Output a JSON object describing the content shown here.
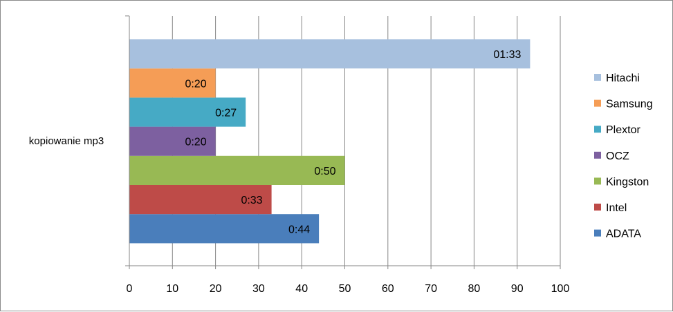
{
  "chart_data": {
    "type": "bar",
    "orientation": "horizontal",
    "categories": [
      "kopiowanie mp3"
    ],
    "series": [
      {
        "name": "ADATA",
        "values": [
          44
        ],
        "label": "0:44",
        "color": "#4a7ebb"
      },
      {
        "name": "Intel",
        "values": [
          33
        ],
        "label": "0:33",
        "color": "#be4b48"
      },
      {
        "name": "Kingston",
        "values": [
          50
        ],
        "label": "0:50",
        "color": "#98b954"
      },
      {
        "name": "OCZ",
        "values": [
          20
        ],
        "label": "0:20",
        "color": "#7d60a0"
      },
      {
        "name": "Plextor",
        "values": [
          27
        ],
        "label": "0:27",
        "color": "#46aac5"
      },
      {
        "name": "Samsung",
        "values": [
          20
        ],
        "label": "0:20",
        "color": "#f59d56"
      },
      {
        "name": "Hitachi",
        "values": [
          93
        ],
        "label": "01:33",
        "color": "#a7c0de"
      }
    ],
    "xlim": [
      0,
      100
    ],
    "x_ticks": [
      "0",
      "10",
      "20",
      "30",
      "40",
      "50",
      "60",
      "70",
      "80",
      "90",
      "100"
    ],
    "grid": "vertical",
    "legend_position": "right",
    "title": "",
    "xlabel": "",
    "ylabel": ""
  }
}
